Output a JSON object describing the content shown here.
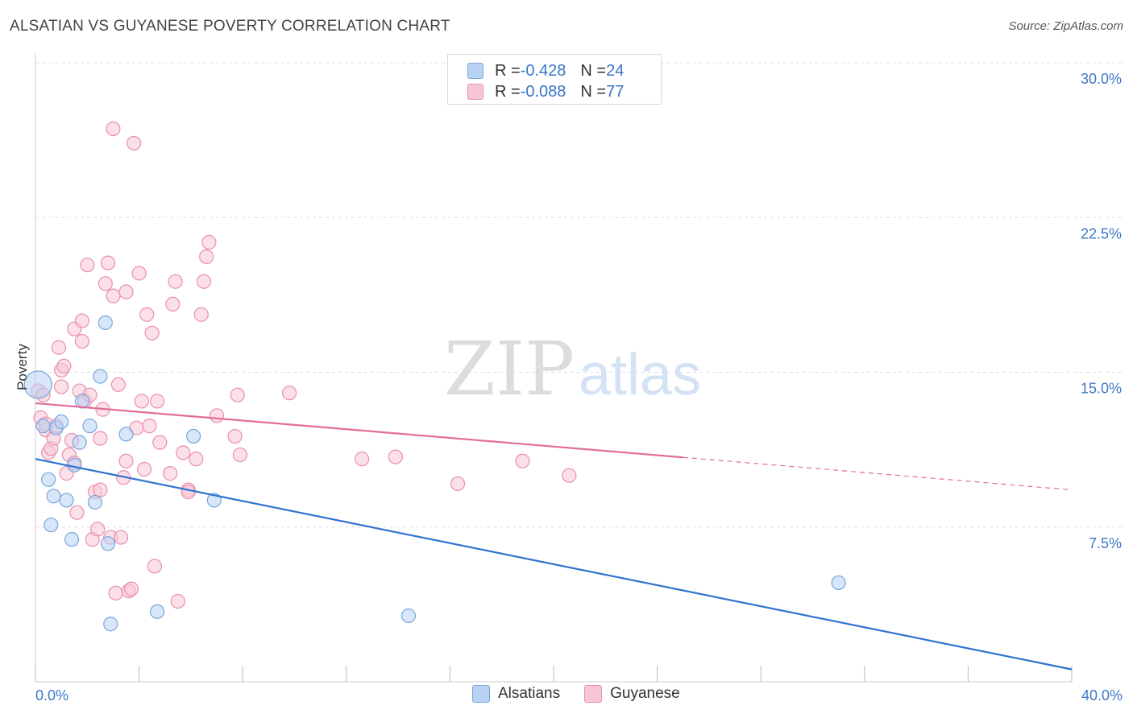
{
  "header": {
    "title": "ALSATIAN VS GUYANESE POVERTY CORRELATION CHART",
    "source": "Source: ZipAtlas.com"
  },
  "watermark": {
    "zip": "ZIP",
    "atlas": "atlas"
  },
  "legend": {
    "rows": [
      {
        "r_label": "R = ",
        "r_value": "-0.428",
        "n_label": "N = ",
        "n_value": "24"
      },
      {
        "r_label": "R = ",
        "r_value": "-0.088",
        "n_label": "N = ",
        "n_value": "77"
      }
    ]
  },
  "colors": {
    "alsatians_fill": "#b7d2f3",
    "alsatians_stroke": "#7aa6dc",
    "alsatians_line": "#2f74d0",
    "guyanese_fill": "#f7c6d5",
    "guyanese_stroke": "#ea8fae",
    "guyanese_line": "#e26d98",
    "axis_label": "#3d78c9",
    "grid": "#dddddd"
  },
  "chart_data": {
    "type": "scatter",
    "title": "ALSATIAN VS GUYANESE POVERTY CORRELATION CHART",
    "xlabel": "",
    "ylabel": "Poverty",
    "xlim": [
      0,
      40
    ],
    "ylim": [
      0,
      30
    ],
    "x_tick_labels": [
      "0.0%",
      "40.0%"
    ],
    "y_ticks": [
      7.5,
      15.0,
      22.5,
      30.0
    ],
    "y_tick_labels": [
      "7.5%",
      "15.0%",
      "22.5%",
      "30.0%"
    ],
    "grid": "horizontal dashed",
    "legend_position": "bottom",
    "series": [
      {
        "name": "Alsatians",
        "r": -0.428,
        "n": 24,
        "trend": {
          "x": [
            0,
            40
          ],
          "y": [
            10.8,
            0.6
          ],
          "dashed_from": null
        },
        "points": [
          [
            0.1,
            14.4
          ],
          [
            0.3,
            12.4
          ],
          [
            0.5,
            9.8
          ],
          [
            0.6,
            7.6
          ],
          [
            0.7,
            9.0
          ],
          [
            0.8,
            12.3
          ],
          [
            1.0,
            12.6
          ],
          [
            1.2,
            8.8
          ],
          [
            1.4,
            6.9
          ],
          [
            1.5,
            10.5
          ],
          [
            1.7,
            11.6
          ],
          [
            1.8,
            13.6
          ],
          [
            2.1,
            12.4
          ],
          [
            2.3,
            8.7
          ],
          [
            2.5,
            14.8
          ],
          [
            2.7,
            17.4
          ],
          [
            2.8,
            6.7
          ],
          [
            2.9,
            2.8
          ],
          [
            3.5,
            12.0
          ],
          [
            4.7,
            3.4
          ],
          [
            6.1,
            11.9
          ],
          [
            6.9,
            8.8
          ],
          [
            14.4,
            3.2
          ],
          [
            31.0,
            4.8
          ]
        ]
      },
      {
        "name": "Guyanese",
        "r": -0.088,
        "n": 77,
        "trend": {
          "x": [
            0,
            40
          ],
          "y": [
            13.5,
            9.3
          ],
          "dashed_from": 25
        },
        "points": [
          [
            0.1,
            14.1
          ],
          [
            0.2,
            12.8
          ],
          [
            0.3,
            13.9
          ],
          [
            0.4,
            12.2
          ],
          [
            0.5,
            11.1
          ],
          [
            0.6,
            11.3
          ],
          [
            0.7,
            11.8
          ],
          [
            0.8,
            12.4
          ],
          [
            0.9,
            16.2
          ],
          [
            1.0,
            15.1
          ],
          [
            1.0,
            14.3
          ],
          [
            1.1,
            15.3
          ],
          [
            1.2,
            10.1
          ],
          [
            1.3,
            11.0
          ],
          [
            1.4,
            11.7
          ],
          [
            1.5,
            10.6
          ],
          [
            1.5,
            17.1
          ],
          [
            1.6,
            8.2
          ],
          [
            1.7,
            14.1
          ],
          [
            1.8,
            17.5
          ],
          [
            1.8,
            16.5
          ],
          [
            1.9,
            13.6
          ],
          [
            2.0,
            20.2
          ],
          [
            2.1,
            13.9
          ],
          [
            2.2,
            6.9
          ],
          [
            2.3,
            9.2
          ],
          [
            2.4,
            7.4
          ],
          [
            2.5,
            9.3
          ],
          [
            2.5,
            11.8
          ],
          [
            2.6,
            13.2
          ],
          [
            2.7,
            19.3
          ],
          [
            2.8,
            20.3
          ],
          [
            2.9,
            7.0
          ],
          [
            3.0,
            18.7
          ],
          [
            3.0,
            26.8
          ],
          [
            3.1,
            4.3
          ],
          [
            3.2,
            14.4
          ],
          [
            3.3,
            7.0
          ],
          [
            3.4,
            9.9
          ],
          [
            3.5,
            10.7
          ],
          [
            3.5,
            18.9
          ],
          [
            3.6,
            4.4
          ],
          [
            3.7,
            4.5
          ],
          [
            3.8,
            26.1
          ],
          [
            3.9,
            12.3
          ],
          [
            4.0,
            19.8
          ],
          [
            4.1,
            13.6
          ],
          [
            4.2,
            10.3
          ],
          [
            4.3,
            17.8
          ],
          [
            4.4,
            12.4
          ],
          [
            4.5,
            16.9
          ],
          [
            4.6,
            5.6
          ],
          [
            4.7,
            13.6
          ],
          [
            4.8,
            11.6
          ],
          [
            5.2,
            10.1
          ],
          [
            5.3,
            18.3
          ],
          [
            5.4,
            19.4
          ],
          [
            5.5,
            3.9
          ],
          [
            5.7,
            11.1
          ],
          [
            5.9,
            9.3
          ],
          [
            5.9,
            9.2
          ],
          [
            6.2,
            10.8
          ],
          [
            6.4,
            17.8
          ],
          [
            6.5,
            19.4
          ],
          [
            6.6,
            20.6
          ],
          [
            6.7,
            21.3
          ],
          [
            7.0,
            12.9
          ],
          [
            7.7,
            11.9
          ],
          [
            7.8,
            13.9
          ],
          [
            7.9,
            11.0
          ],
          [
            9.8,
            14.0
          ],
          [
            12.6,
            10.8
          ],
          [
            13.9,
            10.9
          ],
          [
            16.3,
            9.6
          ],
          [
            18.8,
            10.7
          ],
          [
            20.6,
            10.0
          ],
          [
            0.4,
            12.5
          ]
        ]
      }
    ]
  },
  "bottom_legend": {
    "alsatians": "Alsatians",
    "guyanese": "Guyanese"
  }
}
